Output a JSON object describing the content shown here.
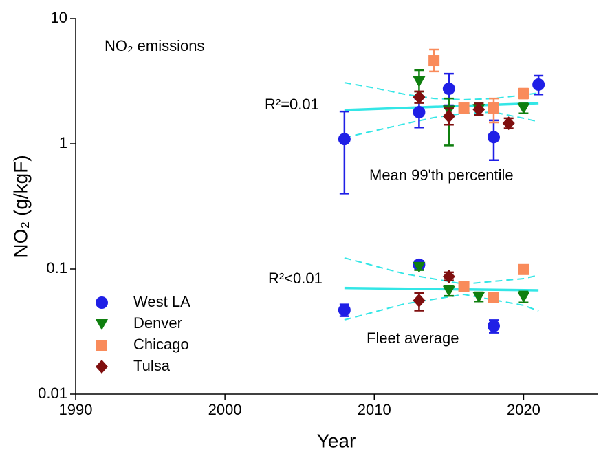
{
  "chart_data": {
    "type": "scatter",
    "annotations": [
      "NO₂ emissions",
      "R²=0.01",
      "Mean 99'th percentile",
      "R²<0.01",
      "Fleet average"
    ],
    "x_label": "Year",
    "y_label": "NO₂ (g/kgF)",
    "xlim": [
      1990,
      2025
    ],
    "xticks": [
      1990,
      2000,
      2010,
      2020
    ],
    "ylim": [
      0.01,
      10
    ],
    "yticks": [
      0.01,
      0.1,
      1,
      10
    ],
    "y_scale": "log",
    "legend": "lower left",
    "series": [
      {
        "name": "West LA",
        "color": "#1f1fe6",
        "marker": "circle",
        "x": [
          2008,
          2013,
          2015,
          2018,
          2021,
          2008,
          2013,
          2018
        ],
        "values": [
          1.09,
          1.79,
          2.75,
          1.13,
          2.97,
          0.047,
          0.108,
          0.035
        ],
        "lower": [
          0.4,
          1.35,
          2.03,
          0.74,
          2.48,
          0.042,
          0.101,
          0.031
        ],
        "upper": [
          1.81,
          2.3,
          3.63,
          1.54,
          3.5,
          0.052,
          0.116,
          0.039
        ]
      },
      {
        "name": "Denver",
        "color": "#0f7f0f",
        "marker": "triangle-down",
        "x": [
          2013,
          2015,
          2017,
          2020,
          2013,
          2015,
          2017,
          2020
        ],
        "values": [
          3.16,
          1.85,
          1.9,
          1.93,
          0.104,
          0.067,
          0.06,
          0.06
        ],
        "lower": [
          2.61,
          0.97,
          1.7,
          1.75,
          0.098,
          0.061,
          0.055,
          0.054
        ],
        "upper": [
          3.87,
          2.3,
          2.1,
          2.1,
          0.11,
          0.073,
          0.065,
          0.066
        ]
      },
      {
        "name": "Chicago",
        "color": "#f98b5b",
        "marker": "square",
        "x": [
          2014,
          2016,
          2018,
          2020,
          2016,
          2018,
          2020
        ],
        "values": [
          4.62,
          1.93,
          1.93,
          2.52,
          0.072,
          0.059,
          0.099
        ],
        "lower": [
          3.78,
          1.8,
          1.48,
          2.3,
          0.068,
          0.055,
          0.094
        ],
        "upper": [
          5.66,
          2.05,
          2.3,
          2.75,
          0.077,
          0.064,
          0.105
        ]
      },
      {
        "name": "Tulsa",
        "color": "#7f0f0f",
        "marker": "diamond",
        "x": [
          2013,
          2015,
          2017,
          2019,
          2013,
          2015
        ],
        "values": [
          2.36,
          1.66,
          1.88,
          1.46,
          0.056,
          0.087
        ],
        "lower": [
          2.12,
          1.42,
          1.7,
          1.33,
          0.0465,
          0.081
        ],
        "upper": [
          2.62,
          1.92,
          2.1,
          1.6,
          0.064,
          0.094
        ]
      }
    ],
    "fits": [
      {
        "color": "#33e6e6",
        "x": [
          2008,
          2021
        ],
        "values": [
          1.86,
          2.11
        ],
        "band_x": [
          2008,
          2010,
          2012,
          2014,
          2016,
          2018,
          2020,
          2021
        ],
        "band_upper": [
          3.08,
          2.79,
          2.49,
          2.3,
          2.25,
          2.3,
          2.45,
          2.55
        ],
        "band_lower": [
          1.12,
          1.27,
          1.44,
          1.62,
          1.75,
          1.79,
          1.6,
          1.5
        ]
      },
      {
        "color": "#33e6e6",
        "x": [
          2008,
          2021
        ],
        "values": [
          0.0705,
          0.0676
        ],
        "band_x": [
          2008,
          2012,
          2016,
          2020,
          2021
        ],
        "band_upper": [
          0.1225,
          0.0916,
          0.0757,
          0.0838,
          0.0892
        ],
        "band_lower": [
          0.0392,
          0.0525,
          0.0626,
          0.0512,
          0.0462
        ]
      }
    ]
  }
}
